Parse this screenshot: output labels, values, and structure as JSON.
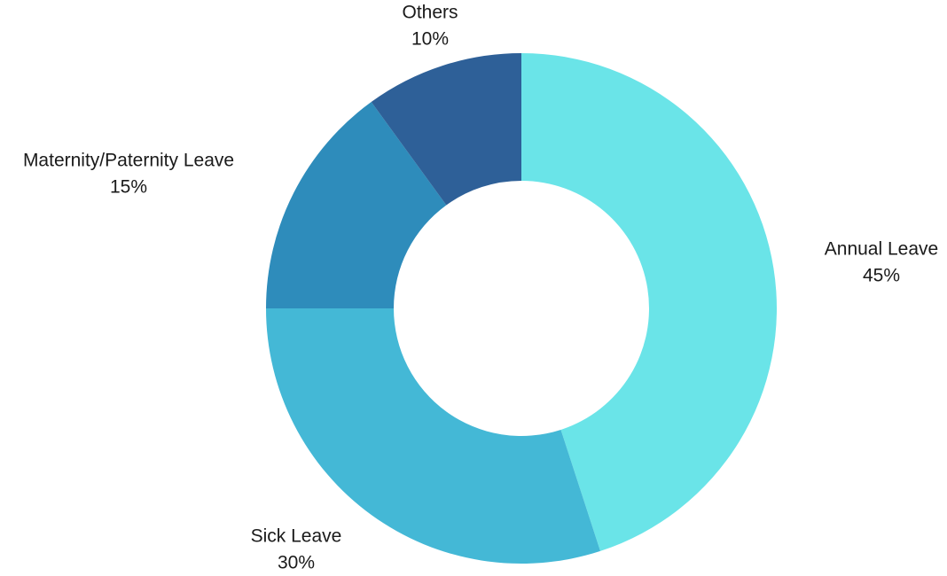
{
  "chart_data": {
    "type": "pie",
    "variant": "donut",
    "title": "",
    "categories": [
      "Annual Leave",
      "Sick Leave",
      "Maternity/Paternity Leave",
      "Others"
    ],
    "values": [
      45,
      30,
      15,
      10
    ],
    "value_labels": [
      "45%",
      "30%",
      "15%",
      "10%"
    ],
    "colors": [
      "#6AE4E8",
      "#44B8D6",
      "#2E8CBB",
      "#2E6098"
    ],
    "start_angle": "12 o'clock",
    "direction": "clockwise",
    "legend": "none"
  }
}
